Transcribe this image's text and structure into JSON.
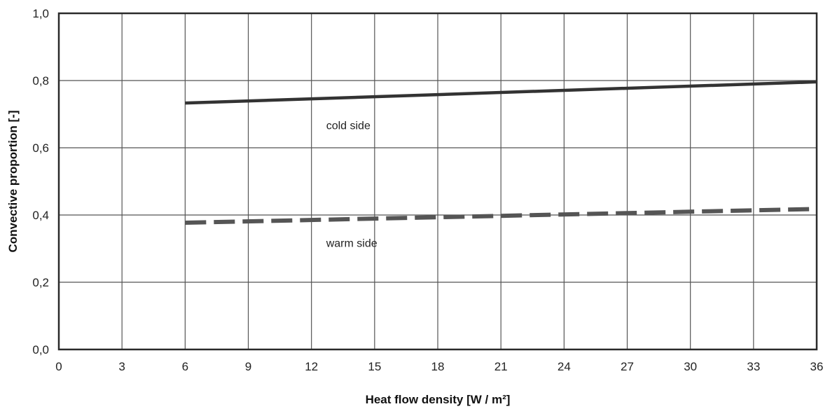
{
  "chart_data": {
    "type": "line",
    "title": "",
    "xlabel": "Heat flow density [W / m²]",
    "ylabel": "Convective proportion [-]",
    "xlim": [
      0,
      36
    ],
    "ylim": [
      0.0,
      1.0
    ],
    "x_ticks": [
      0,
      3,
      6,
      9,
      12,
      15,
      18,
      21,
      24,
      27,
      30,
      33,
      36
    ],
    "y_ticks": [
      0.0,
      0.2,
      0.4,
      0.6,
      0.8,
      1.0
    ],
    "y_tick_labels": [
      "0,0",
      "0,2",
      "0,4",
      "0,6",
      "0,8",
      "1,0"
    ],
    "grid": true,
    "series": [
      {
        "key": "cold",
        "style": "solid",
        "color": "#333333",
        "x": [
          6,
          36
        ],
        "y": [
          0.733,
          0.796
        ]
      },
      {
        "key": "warm",
        "style": "dashed",
        "color": "#555555",
        "x": [
          6,
          36
        ],
        "y": [
          0.377,
          0.418
        ]
      }
    ],
    "annotations": [
      {
        "text": "cold side",
        "x": 12.7,
        "y": 0.655
      },
      {
        "text": "warm side",
        "x": 12.7,
        "y": 0.305
      }
    ]
  }
}
